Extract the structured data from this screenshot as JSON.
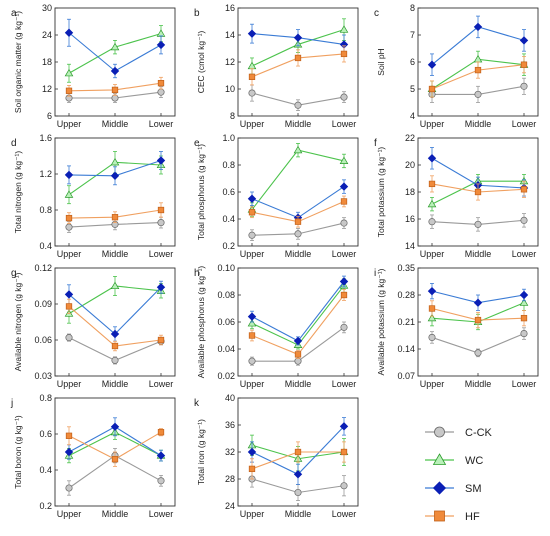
{
  "series_styles": [
    {
      "key": "cck",
      "name": "C-CK",
      "color": "#9a9a9a",
      "marker": "circle",
      "fill": "#c8c8c8"
    },
    {
      "key": "wc",
      "name": "WC",
      "color": "#4cc34c",
      "marker": "triangle",
      "fill": "#b9f0b9"
    },
    {
      "key": "sm",
      "name": "SM",
      "color": "#3a7bd5",
      "marker": "diamond",
      "fill": "#0a1fb5"
    },
    {
      "key": "hf",
      "name": "HF",
      "color": "#f0a060",
      "marker": "square",
      "fill": "#f08a3a"
    }
  ],
  "chart_data": [
    {
      "type": "line",
      "panel": "a",
      "ylabel": "Soil organic matter (g kg⁻¹)",
      "categories": [
        "Upper",
        "Middle",
        "Lower"
      ],
      "ylim": [
        6,
        30
      ],
      "yticks": [
        6,
        12,
        18,
        24,
        30
      ],
      "series": [
        {
          "name": "C-CK",
          "values": [
            10.0,
            10.0,
            11.3
          ],
          "err": [
            1.0,
            1.0,
            1.2
          ]
        },
        {
          "name": "WC",
          "values": [
            15.5,
            21.3,
            24.3
          ],
          "err": [
            2.0,
            1.5,
            1.8
          ]
        },
        {
          "name": "SM",
          "values": [
            24.5,
            16.0,
            21.8
          ],
          "err": [
            3.0,
            1.5,
            2.0
          ]
        },
        {
          "name": "HF",
          "values": [
            11.6,
            11.8,
            13.3
          ],
          "err": [
            1.2,
            1.2,
            1.3
          ]
        }
      ]
    },
    {
      "type": "line",
      "panel": "b",
      "ylabel": "CEC (cmol kg⁻¹)",
      "categories": [
        "Upper",
        "Middle",
        "Lower"
      ],
      "ylim": [
        8,
        16
      ],
      "yticks": [
        8,
        10,
        12,
        14,
        16
      ],
      "series": [
        {
          "name": "C-CK",
          "values": [
            9.7,
            8.8,
            9.4
          ],
          "err": [
            0.6,
            0.4,
            0.4
          ]
        },
        {
          "name": "WC",
          "values": [
            11.7,
            13.3,
            14.4
          ],
          "err": [
            0.6,
            0.6,
            0.8
          ]
        },
        {
          "name": "SM",
          "values": [
            14.1,
            13.8,
            13.3
          ],
          "err": [
            0.7,
            0.6,
            0.7
          ]
        },
        {
          "name": "HF",
          "values": [
            10.9,
            12.3,
            12.6
          ],
          "err": [
            0.6,
            0.6,
            0.6
          ]
        }
      ]
    },
    {
      "type": "line",
      "panel": "c",
      "ylabel": "Soil pH",
      "categories": [
        "Upper",
        "Middle",
        "Lower"
      ],
      "ylim": [
        4.0,
        8.0
      ],
      "yticks": [
        4.0,
        5.0,
        6.0,
        7.0,
        8.0
      ],
      "series": [
        {
          "name": "C-CK",
          "values": [
            4.8,
            4.8,
            5.1
          ],
          "err": [
            0.3,
            0.3,
            0.3
          ]
        },
        {
          "name": "WC",
          "values": [
            5.0,
            6.1,
            5.9
          ],
          "err": [
            0.3,
            0.3,
            0.4
          ]
        },
        {
          "name": "SM",
          "values": [
            5.9,
            7.3,
            6.8
          ],
          "err": [
            0.4,
            0.4,
            0.4
          ]
        },
        {
          "name": "HF",
          "values": [
            5.0,
            5.7,
            5.9
          ],
          "err": [
            0.3,
            0.3,
            0.3
          ]
        }
      ]
    },
    {
      "type": "line",
      "panel": "d",
      "ylabel": "Total nitrogen (g kg⁻¹)",
      "categories": [
        "Upper",
        "Middle",
        "Lower"
      ],
      "ylim": [
        0.4,
        1.6
      ],
      "yticks": [
        0.4,
        0.8,
        1.2,
        1.6
      ],
      "series": [
        {
          "name": "C-CK",
          "values": [
            0.61,
            0.64,
            0.66
          ],
          "err": [
            0.06,
            0.06,
            0.06
          ]
        },
        {
          "name": "WC",
          "values": [
            0.97,
            1.33,
            1.3
          ],
          "err": [
            0.1,
            0.12,
            0.1
          ]
        },
        {
          "name": "SM",
          "values": [
            1.19,
            1.18,
            1.35
          ],
          "err": [
            0.1,
            0.1,
            0.1
          ]
        },
        {
          "name": "HF",
          "values": [
            0.71,
            0.72,
            0.8
          ],
          "err": [
            0.06,
            0.06,
            0.08
          ]
        }
      ]
    },
    {
      "type": "line",
      "panel": "e",
      "ylabel": "Total phosphorus (g kg⁻¹)",
      "categories": [
        "Upper",
        "Middle",
        "Lower"
      ],
      "ylim": [
        0.2,
        1.0
      ],
      "yticks": [
        0.2,
        0.4,
        0.6,
        0.8,
        1.0
      ],
      "series": [
        {
          "name": "C-CK",
          "values": [
            0.28,
            0.29,
            0.37
          ],
          "err": [
            0.04,
            0.04,
            0.04
          ]
        },
        {
          "name": "WC",
          "values": [
            0.47,
            0.91,
            0.83
          ],
          "err": [
            0.05,
            0.05,
            0.05
          ]
        },
        {
          "name": "SM",
          "values": [
            0.55,
            0.41,
            0.64
          ],
          "err": [
            0.05,
            0.04,
            0.05
          ]
        },
        {
          "name": "HF",
          "values": [
            0.45,
            0.38,
            0.53
          ],
          "err": [
            0.04,
            0.04,
            0.04
          ]
        }
      ]
    },
    {
      "type": "line",
      "panel": "f",
      "ylabel": "Total potassium (g kg⁻¹)",
      "categories": [
        "Upper",
        "Middle",
        "Lower"
      ],
      "ylim": [
        14,
        22
      ],
      "yticks": [
        14,
        16,
        18,
        20,
        22
      ],
      "series": [
        {
          "name": "C-CK",
          "values": [
            15.8,
            15.6,
            15.9
          ],
          "err": [
            0.5,
            0.5,
            0.5
          ]
        },
        {
          "name": "WC",
          "values": [
            17.1,
            18.8,
            18.8
          ],
          "err": [
            0.5,
            0.5,
            0.5
          ]
        },
        {
          "name": "SM",
          "values": [
            20.5,
            18.5,
            18.3
          ],
          "err": [
            0.8,
            0.6,
            0.6
          ]
        },
        {
          "name": "HF",
          "values": [
            18.6,
            18.0,
            18.2
          ],
          "err": [
            0.6,
            0.6,
            0.6
          ]
        }
      ]
    },
    {
      "type": "line",
      "panel": "g",
      "ylabel": "Available nitrogen (g kg⁻¹)",
      "categories": [
        "Upper",
        "Middle",
        "Lower"
      ],
      "ylim": [
        0.03,
        0.12
      ],
      "yticks": [
        0.03,
        0.06,
        0.09,
        0.12
      ],
      "series": [
        {
          "name": "C-CK",
          "values": [
            0.062,
            0.043,
            0.059
          ],
          "err": [
            0.003,
            0.003,
            0.003
          ]
        },
        {
          "name": "WC",
          "values": [
            0.082,
            0.105,
            0.101
          ],
          "err": [
            0.008,
            0.008,
            0.006
          ]
        },
        {
          "name": "SM",
          "values": [
            0.098,
            0.065,
            0.104
          ],
          "err": [
            0.008,
            0.006,
            0.005
          ]
        },
        {
          "name": "HF",
          "values": [
            0.088,
            0.055,
            0.06
          ],
          "err": [
            0.006,
            0.004,
            0.004
          ]
        }
      ]
    },
    {
      "type": "line",
      "panel": "h",
      "ylabel": "Available phosphorus (g kg⁻¹)",
      "categories": [
        "Upper",
        "Middle",
        "Lower"
      ],
      "ylim": [
        0.02,
        0.1
      ],
      "yticks": [
        0.02,
        0.04,
        0.06,
        0.08,
        0.1
      ],
      "series": [
        {
          "name": "C-CK",
          "values": [
            0.031,
            0.031,
            0.056
          ],
          "err": [
            0.003,
            0.003,
            0.004
          ]
        },
        {
          "name": "WC",
          "values": [
            0.059,
            0.043,
            0.087
          ],
          "err": [
            0.004,
            0.003,
            0.005
          ]
        },
        {
          "name": "SM",
          "values": [
            0.064,
            0.046,
            0.09
          ],
          "err": [
            0.004,
            0.003,
            0.004
          ]
        },
        {
          "name": "HF",
          "values": [
            0.05,
            0.036,
            0.08
          ],
          "err": [
            0.004,
            0.003,
            0.004
          ]
        }
      ]
    },
    {
      "type": "line",
      "panel": "i",
      "ylabel": "Available potassium (g kg⁻¹)",
      "categories": [
        "Upper",
        "Middle",
        "Lower"
      ],
      "ylim": [
        0.07,
        0.35
      ],
      "yticks": [
        0.07,
        0.14,
        0.21,
        0.28,
        0.35
      ],
      "series": [
        {
          "name": "C-CK",
          "values": [
            0.17,
            0.13,
            0.18
          ],
          "err": [
            0.015,
            0.01,
            0.015
          ]
        },
        {
          "name": "WC",
          "values": [
            0.22,
            0.21,
            0.26
          ],
          "err": [
            0.02,
            0.02,
            0.02
          ]
        },
        {
          "name": "SM",
          "values": [
            0.29,
            0.26,
            0.28
          ],
          "err": [
            0.02,
            0.02,
            0.015
          ]
        },
        {
          "name": "HF",
          "values": [
            0.245,
            0.215,
            0.22
          ],
          "err": [
            0.02,
            0.02,
            0.02
          ]
        }
      ]
    },
    {
      "type": "line",
      "panel": "j",
      "ylabel": "Total boron (g kg⁻¹)",
      "categories": [
        "Upper",
        "Middle",
        "Lower"
      ],
      "ylim": [
        0.2,
        0.8
      ],
      "yticks": [
        0.2,
        0.4,
        0.6,
        0.8
      ],
      "series": [
        {
          "name": "C-CK",
          "values": [
            0.3,
            0.48,
            0.34
          ],
          "err": [
            0.04,
            0.04,
            0.03
          ]
        },
        {
          "name": "WC",
          "values": [
            0.48,
            0.61,
            0.48
          ],
          "err": [
            0.04,
            0.04,
            0.03
          ]
        },
        {
          "name": "SM",
          "values": [
            0.5,
            0.64,
            0.48
          ],
          "err": [
            0.04,
            0.05,
            0.03
          ]
        },
        {
          "name": "HF",
          "values": [
            0.59,
            0.46,
            0.61
          ],
          "err": [
            0.05,
            0.04,
            0.02
          ]
        }
      ]
    },
    {
      "type": "line",
      "panel": "k",
      "ylabel": "Total iron (g kg⁻¹)",
      "categories": [
        "Upper",
        "Middle",
        "Lower"
      ],
      "ylim": [
        24,
        40
      ],
      "yticks": [
        24,
        28,
        32,
        36,
        40
      ],
      "series": [
        {
          "name": "C-CK",
          "values": [
            28.0,
            26.0,
            27.0
          ],
          "err": [
            1.2,
            1.2,
            1.5
          ]
        },
        {
          "name": "WC",
          "values": [
            33.0,
            31.0,
            32.0
          ],
          "err": [
            1.5,
            1.8,
            2.0
          ]
        },
        {
          "name": "SM",
          "values": [
            32.0,
            28.7,
            35.8
          ],
          "err": [
            1.5,
            1.5,
            1.3
          ]
        },
        {
          "name": "HF",
          "values": [
            29.5,
            32.0,
            32.0
          ],
          "err": [
            1.5,
            1.5,
            1.5
          ]
        }
      ]
    }
  ]
}
